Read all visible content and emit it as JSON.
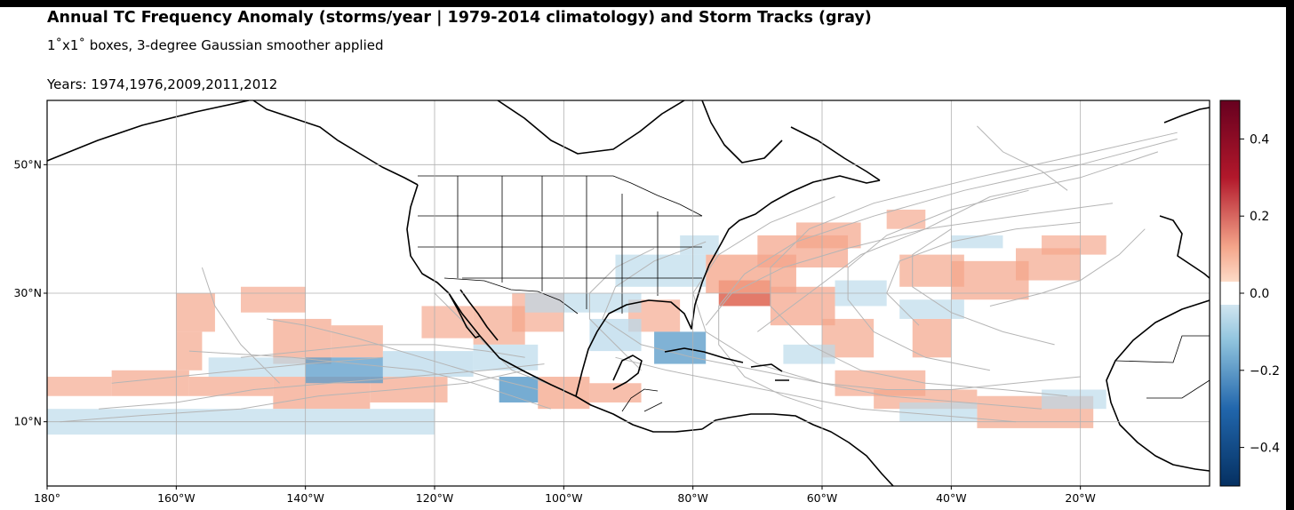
{
  "header": {
    "title": "Annual TC Frequency Anomaly (storms/year | 1979-2014 climatology) and Storm Tracks (gray)",
    "subtitle": "1˚x1˚ boxes, 3-degree Gaussian smoother applied",
    "years": "Years: 1974,1976,2009,2011,2012"
  },
  "map": {
    "projection": "PlateCarree",
    "lon_range": [
      -180,
      0
    ],
    "lat_range": [
      0,
      60
    ],
    "gridlines": true,
    "lon_ticks": [
      "180°",
      "160°W",
      "140°W",
      "120°W",
      "100°W",
      "80°W",
      "60°W",
      "40°W",
      "20°W"
    ],
    "lon_tick_values": [
      -180,
      -160,
      -140,
      -120,
      -100,
      -80,
      -60,
      -40,
      -20
    ],
    "lat_ticks": [
      "10°N",
      "30°N",
      "50°N"
    ],
    "lat_tick_values": [
      10,
      30,
      50
    ],
    "colors": {
      "positive": "#f4a58a",
      "positive_strong": "#e06b5a",
      "negative": "#b9d9ea",
      "negative_strong": "#5a9bc9",
      "tracks": "#b5b5b5",
      "coast": "#000000",
      "grid": "#b0b0b0"
    },
    "tracks": [
      [
        [
          -172,
          12
        ],
        [
          -160,
          13
        ],
        [
          -148,
          15
        ],
        [
          -136,
          16
        ],
        [
          -124,
          17
        ],
        [
          -112,
          18
        ],
        [
          -103,
          19
        ]
      ],
      [
        [
          -178,
          10
        ],
        [
          -165,
          11
        ],
        [
          -150,
          12
        ],
        [
          -138,
          14
        ],
        [
          -126,
          15
        ],
        [
          -115,
          16
        ],
        [
          -106,
          18
        ]
      ],
      [
        [
          -150,
          20
        ],
        [
          -140,
          21
        ],
        [
          -130,
          22
        ],
        [
          -120,
          22
        ],
        [
          -112,
          21
        ],
        [
          -106,
          20
        ]
      ],
      [
        [
          -170,
          16
        ],
        [
          -160,
          17
        ],
        [
          -150,
          18
        ],
        [
          -140,
          19
        ],
        [
          -128,
          20
        ]
      ],
      [
        [
          -146,
          26
        ],
        [
          -140,
          25
        ],
        [
          -132,
          23
        ],
        [
          -122,
          20
        ],
        [
          -112,
          17
        ],
        [
          -104,
          15
        ]
      ],
      [
        [
          -120,
          30
        ],
        [
          -116,
          26
        ],
        [
          -112,
          22
        ],
        [
          -108,
          18
        ],
        [
          -100,
          15
        ]
      ],
      [
        [
          -156,
          34
        ],
        [
          -154,
          28
        ],
        [
          -150,
          22
        ],
        [
          -144,
          16
        ]
      ],
      [
        [
          -102,
          12
        ],
        [
          -108,
          14
        ],
        [
          -114,
          16
        ],
        [
          -122,
          18
        ],
        [
          -132,
          19
        ],
        [
          -142,
          20
        ],
        [
          -158,
          21
        ]
      ],
      [
        [
          -20,
          17
        ],
        [
          -30,
          16
        ],
        [
          -40,
          15
        ],
        [
          -50,
          15
        ],
        [
          -60,
          16
        ],
        [
          -70,
          19
        ],
        [
          -78,
          24
        ],
        [
          -80,
          30
        ],
        [
          -76,
          36
        ],
        [
          -68,
          41
        ],
        [
          -58,
          45
        ]
      ],
      [
        [
          -22,
          14
        ],
        [
          -32,
          15
        ],
        [
          -44,
          16
        ],
        [
          -54,
          18
        ],
        [
          -62,
          22
        ],
        [
          -68,
          28
        ],
        [
          -68,
          34
        ],
        [
          -62,
          40
        ],
        [
          -52,
          44
        ],
        [
          -36,
          48
        ],
        [
          -18,
          52
        ],
        [
          -5,
          55
        ]
      ],
      [
        [
          -26,
          12
        ],
        [
          -38,
          13
        ],
        [
          -50,
          14
        ],
        [
          -60,
          16
        ],
        [
          -70,
          18
        ],
        [
          -80,
          20
        ],
        [
          -88,
          22
        ],
        [
          -94,
          26
        ],
        [
          -92,
          31
        ],
        [
          -86,
          35
        ],
        [
          -78,
          38
        ]
      ],
      [
        [
          -30,
          10
        ],
        [
          -42,
          11
        ],
        [
          -54,
          12
        ],
        [
          -64,
          14
        ],
        [
          -74,
          16
        ],
        [
          -84,
          18
        ],
        [
          -92,
          20
        ]
      ],
      [
        [
          -34,
          18
        ],
        [
          -44,
          20
        ],
        [
          -52,
          24
        ],
        [
          -56,
          29
        ],
        [
          -56,
          34
        ],
        [
          -50,
          39
        ],
        [
          -40,
          43
        ],
        [
          -28,
          46
        ]
      ],
      [
        [
          -60,
          12
        ],
        [
          -66,
          14
        ],
        [
          -72,
          17
        ],
        [
          -76,
          22
        ],
        [
          -76,
          28
        ],
        [
          -72,
          33
        ],
        [
          -64,
          38
        ],
        [
          -52,
          42
        ],
        [
          -38,
          46
        ],
        [
          -20,
          50
        ],
        [
          -5,
          54
        ]
      ],
      [
        [
          -45,
          25
        ],
        [
          -50,
          30
        ],
        [
          -48,
          35
        ],
        [
          -40,
          38
        ],
        [
          -30,
          40
        ],
        [
          -20,
          41
        ]
      ],
      [
        [
          -24,
          22
        ],
        [
          -32,
          24
        ],
        [
          -40,
          27
        ],
        [
          -46,
          31
        ],
        [
          -46,
          36
        ],
        [
          -40,
          40
        ]
      ],
      [
        [
          -78,
          25
        ],
        [
          -74,
          30
        ],
        [
          -66,
          34
        ],
        [
          -56,
          37
        ],
        [
          -44,
          40
        ],
        [
          -30,
          42
        ],
        [
          -15,
          44
        ]
      ],
      [
        [
          -88,
          18
        ],
        [
          -92,
          22
        ],
        [
          -96,
          26
        ],
        [
          -96,
          30
        ],
        [
          -92,
          34
        ],
        [
          -86,
          37
        ]
      ],
      [
        [
          -70,
          24
        ],
        [
          -62,
          30
        ],
        [
          -54,
          36
        ],
        [
          -44,
          40
        ],
        [
          -34,
          45
        ],
        [
          -20,
          48
        ],
        [
          -8,
          52
        ]
      ],
      [
        [
          -36,
          56
        ],
        [
          -32,
          52
        ],
        [
          -26,
          49
        ],
        [
          -22,
          46
        ]
      ],
      [
        [
          -10,
          40
        ],
        [
          -14,
          36
        ],
        [
          -20,
          32
        ],
        [
          -26,
          30
        ],
        [
          -34,
          28
        ]
      ]
    ],
    "anomaly_cells": [
      {
        "sign": 1,
        "lon": [
          -180,
          -170
        ],
        "lat": [
          14,
          17
        ],
        "level": 0.12
      },
      {
        "sign": 1,
        "lon": [
          -170,
          -158
        ],
        "lat": [
          14,
          18
        ],
        "level": 0.15
      },
      {
        "sign": 1,
        "lon": [
          -158,
          -145
        ],
        "lat": [
          14,
          17
        ],
        "level": 0.15
      },
      {
        "sign": 1,
        "lon": [
          -145,
          -130
        ],
        "lat": [
          12,
          17
        ],
        "level": 0.18
      },
      {
        "sign": 1,
        "lon": [
          -130,
          -118
        ],
        "lat": [
          13,
          17
        ],
        "level": 0.16
      },
      {
        "sign": 1,
        "lon": [
          -160,
          -154
        ],
        "lat": [
          24,
          30
        ],
        "level": 0.14
      },
      {
        "sign": 1,
        "lon": [
          -160,
          -156
        ],
        "lat": [
          18,
          24
        ],
        "level": 0.14
      },
      {
        "sign": 1,
        "lon": [
          -150,
          -140
        ],
        "lat": [
          27,
          31
        ],
        "level": 0.12
      },
      {
        "sign": 1,
        "lon": [
          -145,
          -136
        ],
        "lat": [
          19,
          26
        ],
        "level": 0.16
      },
      {
        "sign": 1,
        "lon": [
          -136,
          -128
        ],
        "lat": [
          20,
          25
        ],
        "level": 0.14
      },
      {
        "sign": 1,
        "lon": [
          -122,
          -114
        ],
        "lat": [
          23,
          28
        ],
        "level": 0.12
      },
      {
        "sign": 1,
        "lon": [
          -114,
          -106
        ],
        "lat": [
          22,
          28
        ],
        "level": 0.14
      },
      {
        "sign": 1,
        "lon": [
          -108,
          -100
        ],
        "lat": [
          24,
          30
        ],
        "level": 0.12
      },
      {
        "sign": 1,
        "lon": [
          -104,
          -96
        ],
        "lat": [
          12,
          17
        ],
        "level": 0.2
      },
      {
        "sign": 1,
        "lon": [
          -96,
          -88
        ],
        "lat": [
          13,
          16
        ],
        "level": 0.16
      },
      {
        "sign": 1,
        "lon": [
          -90,
          -82
        ],
        "lat": [
          24,
          29
        ],
        "level": 0.12
      },
      {
        "sign": 1,
        "lon": [
          -76,
          -68
        ],
        "lat": [
          28,
          32
        ],
        "level": 0.35
      },
      {
        "sign": 1,
        "lon": [
          -78,
          -64
        ],
        "lat": [
          30,
          36
        ],
        "level": 0.22
      },
      {
        "sign": 1,
        "lon": [
          -70,
          -56
        ],
        "lat": [
          34,
          39
        ],
        "level": 0.18
      },
      {
        "sign": 1,
        "lon": [
          -64,
          -54
        ],
        "lat": [
          37,
          41
        ],
        "level": 0.16
      },
      {
        "sign": 1,
        "lon": [
          -68,
          -58
        ],
        "lat": [
          25,
          31
        ],
        "level": 0.18
      },
      {
        "sign": 1,
        "lon": [
          -60,
          -52
        ],
        "lat": [
          20,
          26
        ],
        "level": 0.14
      },
      {
        "sign": 1,
        "lon": [
          -58,
          -44
        ],
        "lat": [
          14,
          18
        ],
        "level": 0.14
      },
      {
        "sign": 1,
        "lon": [
          -52,
          -36
        ],
        "lat": [
          12,
          15
        ],
        "level": 0.14
      },
      {
        "sign": 1,
        "lon": [
          -36,
          -18
        ],
        "lat": [
          9,
          14
        ],
        "level": 0.14
      },
      {
        "sign": 1,
        "lon": [
          -46,
          -40
        ],
        "lat": [
          20,
          26
        ],
        "level": 0.16
      },
      {
        "sign": 1,
        "lon": [
          -48,
          -38
        ],
        "lat": [
          31,
          36
        ],
        "level": 0.14
      },
      {
        "sign": 1,
        "lon": [
          -40,
          -28
        ],
        "lat": [
          29,
          35
        ],
        "level": 0.16
      },
      {
        "sign": 1,
        "lon": [
          -30,
          -20
        ],
        "lat": [
          32,
          37
        ],
        "level": 0.14
      },
      {
        "sign": 1,
        "lon": [
          -26,
          -16
        ],
        "lat": [
          36,
          39
        ],
        "level": 0.12
      },
      {
        "sign": 1,
        "lon": [
          -50,
          -44
        ],
        "lat": [
          40,
          43
        ],
        "level": 0.12
      },
      {
        "sign": -1,
        "lon": [
          -180,
          -160
        ],
        "lat": [
          8,
          12
        ],
        "level": 0.1
      },
      {
        "sign": -1,
        "lon": [
          -160,
          -140
        ],
        "lat": [
          8,
          12
        ],
        "level": 0.1
      },
      {
        "sign": -1,
        "lon": [
          -140,
          -120
        ],
        "lat": [
          8,
          12
        ],
        "level": 0.1
      },
      {
        "sign": -1,
        "lon": [
          -155,
          -140
        ],
        "lat": [
          17,
          20
        ],
        "level": 0.1
      },
      {
        "sign": -1,
        "lon": [
          -140,
          -128
        ],
        "lat": [
          16,
          20
        ],
        "level": 0.2
      },
      {
        "sign": -1,
        "lon": [
          -128,
          -114
        ],
        "lat": [
          17,
          21
        ],
        "level": 0.18
      },
      {
        "sign": -1,
        "lon": [
          -114,
          -104
        ],
        "lat": [
          18,
          22
        ],
        "level": 0.14
      },
      {
        "sign": -1,
        "lon": [
          -110,
          -104
        ],
        "lat": [
          13,
          17
        ],
        "level": 0.28
      },
      {
        "sign": -1,
        "lon": [
          -106,
          -88
        ],
        "lat": [
          27,
          30
        ],
        "level": 0.1
      },
      {
        "sign": -1,
        "lon": [
          -96,
          -88
        ],
        "lat": [
          21,
          26
        ],
        "level": 0.18
      },
      {
        "sign": -1,
        "lon": [
          -86,
          -78
        ],
        "lat": [
          19,
          24
        ],
        "level": 0.22
      },
      {
        "sign": -1,
        "lon": [
          -92,
          -78
        ],
        "lat": [
          31,
          36
        ],
        "level": 0.12
      },
      {
        "sign": -1,
        "lon": [
          -82,
          -76
        ],
        "lat": [
          36,
          39
        ],
        "level": 0.1
      },
      {
        "sign": -1,
        "lon": [
          -66,
          -58
        ],
        "lat": [
          19,
          22
        ],
        "level": 0.12
      },
      {
        "sign": -1,
        "lon": [
          -48,
          -38
        ],
        "lat": [
          26,
          29
        ],
        "level": 0.1
      },
      {
        "sign": -1,
        "lon": [
          -48,
          -36
        ],
        "lat": [
          10,
          13
        ],
        "level": 0.12
      },
      {
        "sign": -1,
        "lon": [
          -26,
          -16
        ],
        "lat": [
          12,
          15
        ],
        "level": 0.1
      },
      {
        "sign": -1,
        "lon": [
          -58,
          -50
        ],
        "lat": [
          28,
          32
        ],
        "level": 0.1
      },
      {
        "sign": -1,
        "lon": [
          -40,
          -32
        ],
        "lat": [
          37,
          39
        ],
        "level": 0.1
      }
    ]
  },
  "colorbar": {
    "ticks": [
      "0.4",
      "0.2",
      "0.0",
      "−0.2",
      "−0.4"
    ],
    "tick_values": [
      0.4,
      0.2,
      0.0,
      -0.2,
      -0.4
    ],
    "range": [
      -0.5,
      0.5
    ]
  }
}
